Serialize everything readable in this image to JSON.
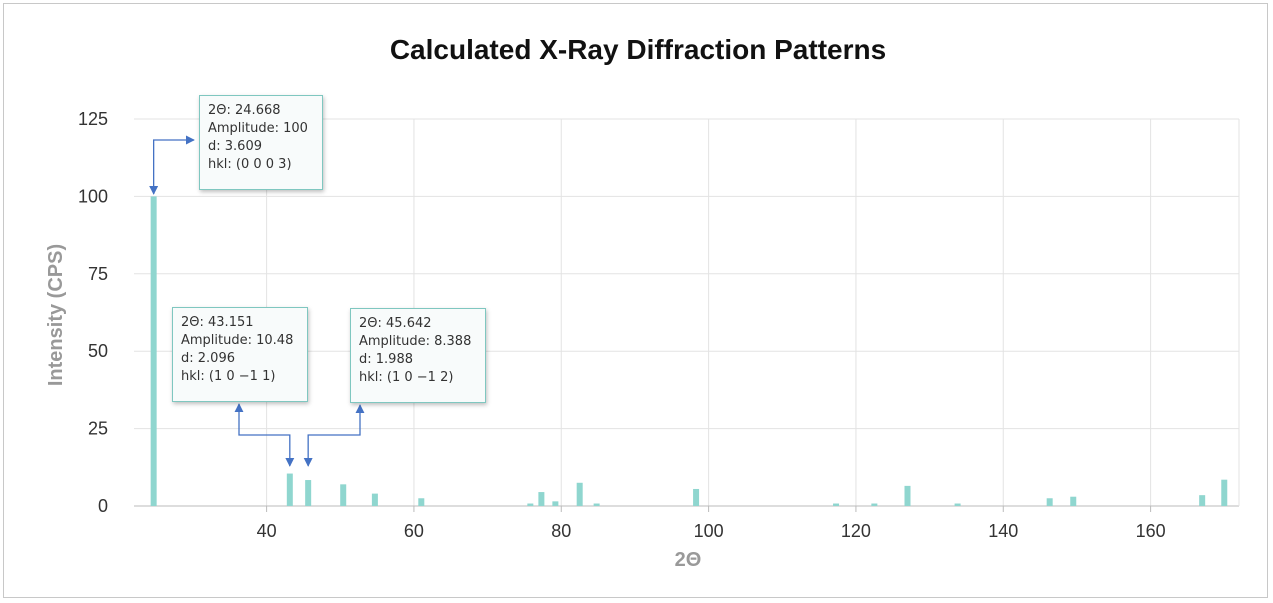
{
  "chart_data": {
    "type": "bar",
    "title": "Calculated X-Ray Diffraction Patterns",
    "xlabel": "2Θ",
    "ylabel": "Intensity (CPS)",
    "xlim": [
      22,
      172
    ],
    "ylim": [
      0,
      125
    ],
    "xticks": [
      40,
      60,
      80,
      100,
      120,
      140,
      160
    ],
    "yticks": [
      0,
      25,
      50,
      75,
      100,
      125
    ],
    "grid": true,
    "bar_color": "#8fd6cf",
    "annotation_color": "#4472c4",
    "points": [
      {
        "x": 24.668,
        "y": 100
      },
      {
        "x": 43.151,
        "y": 10.48
      },
      {
        "x": 45.642,
        "y": 8.388
      },
      {
        "x": 50.4,
        "y": 7
      },
      {
        "x": 54.7,
        "y": 4
      },
      {
        "x": 61.0,
        "y": 2.5
      },
      {
        "x": 75.8,
        "y": 0.8
      },
      {
        "x": 77.3,
        "y": 4.5
      },
      {
        "x": 79.2,
        "y": 1.5
      },
      {
        "x": 82.5,
        "y": 7.5
      },
      {
        "x": 84.8,
        "y": 0.8
      },
      {
        "x": 98.3,
        "y": 5.5
      },
      {
        "x": 117.3,
        "y": 0.8
      },
      {
        "x": 122.5,
        "y": 0.8
      },
      {
        "x": 127.0,
        "y": 6.5
      },
      {
        "x": 133.8,
        "y": 0.8
      },
      {
        "x": 146.3,
        "y": 2.5
      },
      {
        "x": 149.5,
        "y": 3
      },
      {
        "x": 167.0,
        "y": 3.5
      },
      {
        "x": 170.0,
        "y": 8.5
      }
    ],
    "tooltips": [
      {
        "two_theta": "2Θ: 24.668",
        "amplitude": "Amplitude: 100",
        "d": "d: 3.609",
        "hkl": "hkl: (0 0 0 3)"
      },
      {
        "two_theta": "2Θ: 43.151",
        "amplitude": "Amplitude: 10.48",
        "d": "d: 2.096",
        "hkl": "hkl: (1 0 −1 1)"
      },
      {
        "two_theta": "2Θ: 45.642",
        "amplitude": "Amplitude: 8.388",
        "d": "d: 1.988",
        "hkl": "hkl: (1 0 −1 2)"
      }
    ]
  }
}
